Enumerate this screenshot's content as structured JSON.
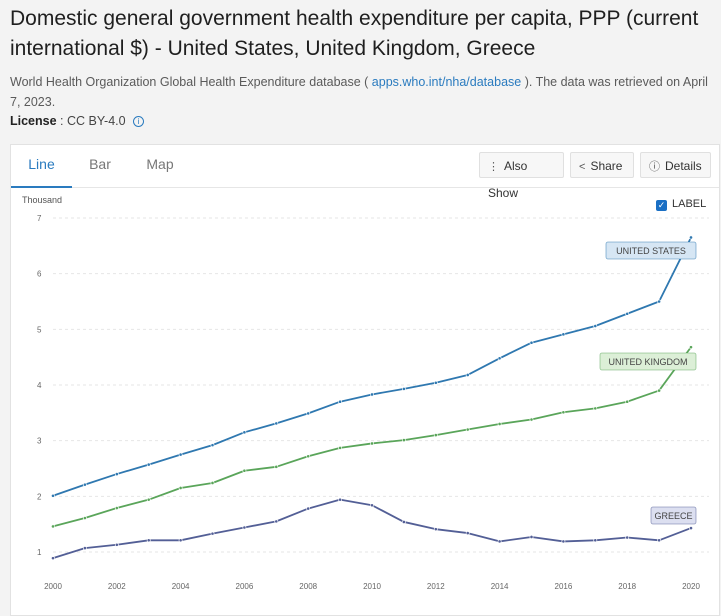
{
  "title": "Domestic general government health expenditure per capita, PPP (current international $) - United States, United Kingdom, Greece",
  "source": {
    "prefix": "World Health Organization Global Health Expenditure database (",
    "link_text": "apps.who.int/nha/database",
    "suffix": "). The data was retrieved on April 7, 2023."
  },
  "license": {
    "label": "License",
    "value": ": CC BY-4.0",
    "icon": "info-icon"
  },
  "tabs": [
    "Line",
    "Bar",
    "Map"
  ],
  "toolbar": {
    "also_show": "Also Show",
    "share": "Share",
    "details": "Details"
  },
  "label_toggle": "LABEL",
  "colors": {
    "accent": "#2a7bbf",
    "us": "#2f78b0",
    "uk": "#5aa55a",
    "greece": "#535f96"
  },
  "chart_data": {
    "type": "line",
    "ylabel": "Thousand",
    "ylim": [
      1,
      7
    ],
    "yticks": [
      1,
      2,
      3,
      4,
      5,
      6,
      7
    ],
    "x": [
      2000,
      2001,
      2002,
      2003,
      2004,
      2005,
      2006,
      2007,
      2008,
      2009,
      2010,
      2011,
      2012,
      2013,
      2014,
      2015,
      2016,
      2017,
      2018,
      2019,
      2020
    ],
    "xticks": [
      2000,
      2002,
      2004,
      2006,
      2008,
      2010,
      2012,
      2014,
      2016,
      2018,
      2020
    ],
    "grid": true,
    "series": [
      {
        "name": "UNITED STATES",
        "color": "#2f78b0",
        "values": [
          2.01,
          2.21,
          2.4,
          2.57,
          2.75,
          2.92,
          3.15,
          3.31,
          3.49,
          3.7,
          3.83,
          3.93,
          4.04,
          4.18,
          4.48,
          4.76,
          4.91,
          5.06,
          5.28,
          5.5,
          6.65
        ]
      },
      {
        "name": "UNITED KINGDOM",
        "color": "#5aa55a",
        "values": [
          1.46,
          1.61,
          1.79,
          1.94,
          2.15,
          2.24,
          2.46,
          2.53,
          2.72,
          2.87,
          2.95,
          3.01,
          3.1,
          3.2,
          3.3,
          3.38,
          3.51,
          3.58,
          3.7,
          3.9,
          4.68
        ]
      },
      {
        "name": "GREECE",
        "color": "#535f96",
        "values": [
          0.89,
          1.07,
          1.13,
          1.21,
          1.21,
          1.33,
          1.44,
          1.55,
          1.78,
          1.94,
          1.84,
          1.54,
          1.41,
          1.34,
          1.19,
          1.27,
          1.19,
          1.21,
          1.26,
          1.21,
          1.43
        ]
      }
    ]
  }
}
